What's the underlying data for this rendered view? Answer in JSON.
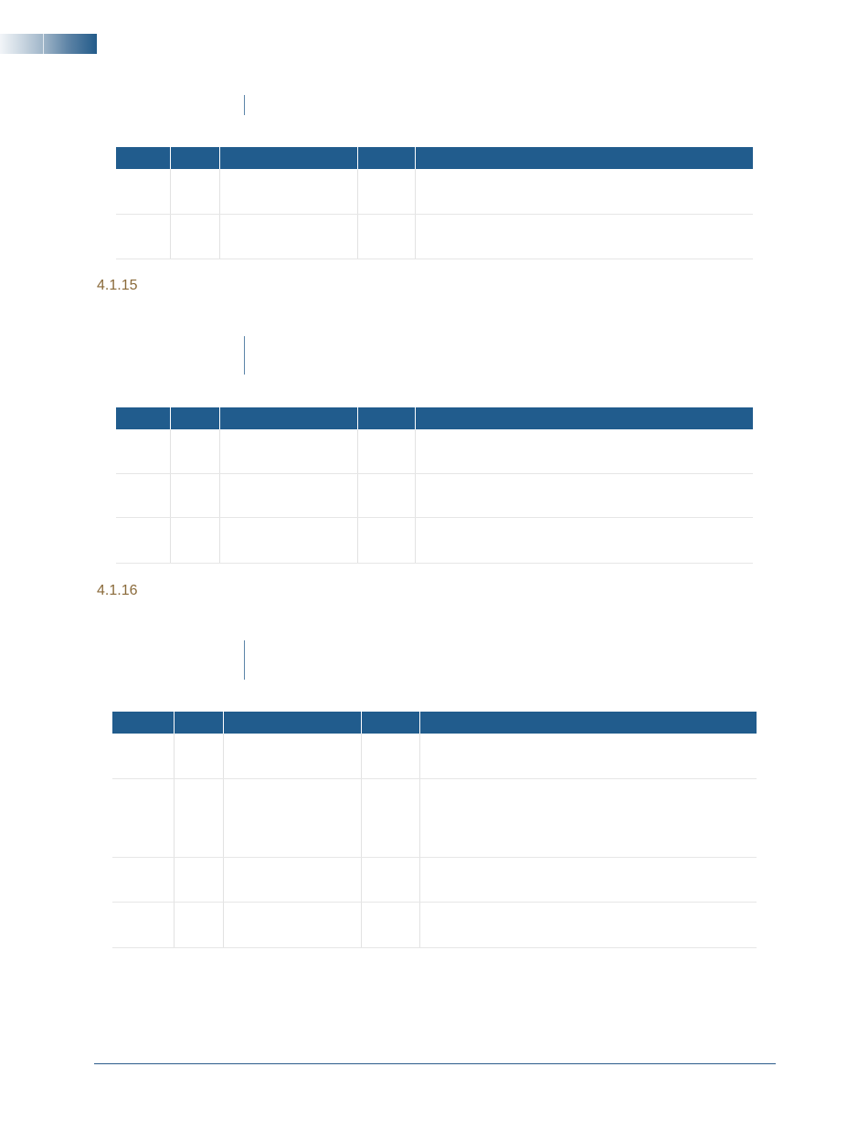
{
  "sections": [
    {
      "number": "",
      "rows": 2
    },
    {
      "number": "4.1.15",
      "rows": 3
    },
    {
      "number": "4.1.16",
      "rows": 4
    }
  ],
  "colors": {
    "table_header": "#215c8d",
    "heading_text": "#8a6a3a",
    "rule": "#2c5c8c"
  }
}
